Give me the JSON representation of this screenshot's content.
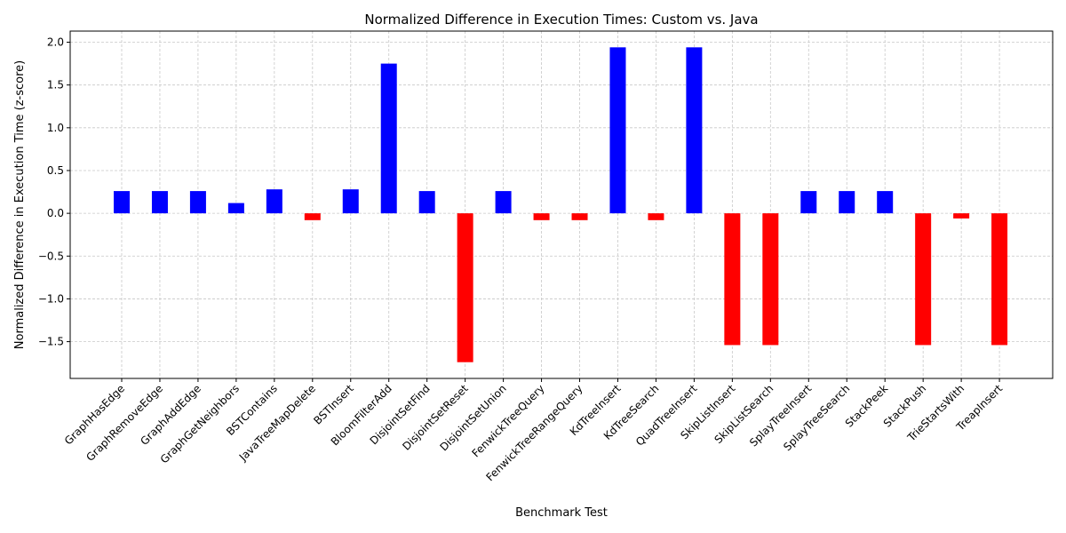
{
  "chart_data": {
    "type": "bar",
    "title": "Normalized Difference in Execution Times: Custom vs. Java",
    "xlabel": "Benchmark Test",
    "ylabel": "Normalized Difference in Execution Time (z-score)",
    "categories": [
      "GraphHasEdge",
      "GraphRemoveEdge",
      "GraphAddEdge",
      "GraphGetNeighbors",
      "BSTContains",
      "JavaTreeMapDelete",
      "BSTInsert",
      "BloomFilterAdd",
      "DisjointSetFind",
      "DisjointSetReset",
      "DisjointSetUnion",
      "FenwickTreeQuery",
      "FenwickTreeRangeQuery",
      "KdTreeInsert",
      "KdTreeSearch",
      "QuadTreeInsert",
      "SkipListInsert",
      "SkipListSearch",
      "SplayTreeInsert",
      "SplayTreeSearch",
      "StackPeek",
      "StackPush",
      "TrieStartsWith",
      "TreapInsert"
    ],
    "values": [
      0.26,
      0.26,
      0.26,
      0.12,
      0.28,
      -0.08,
      0.28,
      1.75,
      0.26,
      -1.74,
      0.26,
      -0.08,
      -0.08,
      1.94,
      -0.08,
      1.94,
      -1.54,
      -1.54,
      0.26,
      0.26,
      0.26,
      -1.54,
      -0.06,
      -1.54
    ],
    "ylim": [
      -1.93,
      2.13
    ],
    "yticks": [
      -1.5,
      -1.0,
      -0.5,
      0.0,
      0.5,
      1.0,
      1.5,
      2.0
    ],
    "grid": true,
    "colors": {
      "positive": "#0000ff",
      "negative": "#ff0000"
    }
  }
}
